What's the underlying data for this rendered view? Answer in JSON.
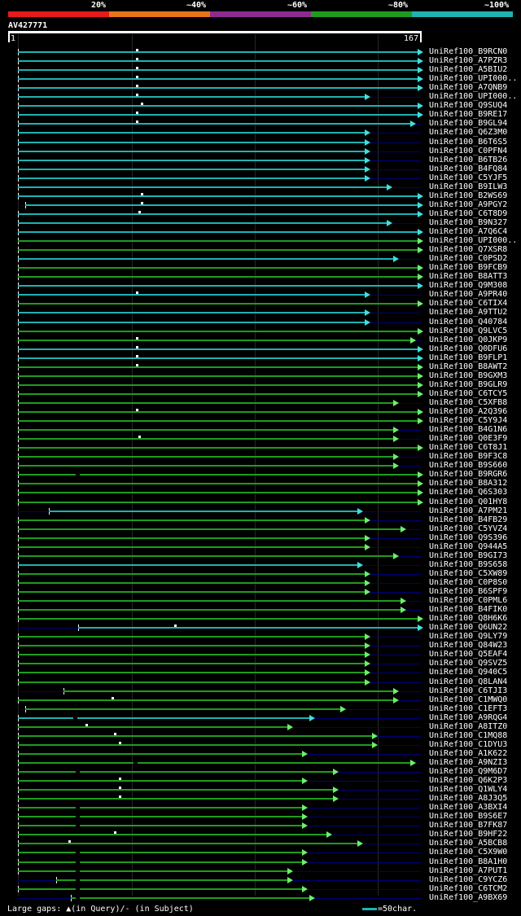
{
  "legend": {
    "labels": [
      "20%",
      "~40%",
      "~60%",
      "~80%",
      "~100%"
    ],
    "colors": [
      "#e41a1c",
      "#e6751a",
      "#8e2b8f",
      "#1e9c1e",
      "#1fb2b2"
    ]
  },
  "query": {
    "title": "AV427771",
    "start_label": "1",
    "end_label": "167",
    "length": 167
  },
  "footer": {
    "gaps_text": "Large gaps: ▲(in Query)/- (in Subject)",
    "scale_text": "=50char.",
    "scale_color": "#1fb2b2"
  },
  "chart_data": {
    "type": "alignment_overview",
    "query_id": "AV427771",
    "query_range": [
      1,
      167
    ],
    "color_legend": [
      "20%",
      "~40%",
      "~60%",
      "~80%",
      "~100%"
    ],
    "hits": [
      {
        "label": "UniRef100_B9RCN0",
        "start": 1,
        "end": 167,
        "color": "cyan",
        "qgap": 50
      },
      {
        "label": "UniRef100_A7PZR3",
        "start": 1,
        "end": 167,
        "color": "cyan",
        "qgap": 50
      },
      {
        "label": "UniRef100_A5BIU2",
        "start": 1,
        "end": 167,
        "color": "cyan",
        "qgap": 50
      },
      {
        "label": "UniRef100_UPI000..",
        "start": 1,
        "end": 167,
        "color": "cyan",
        "qgap": 50
      },
      {
        "label": "UniRef100_A7QNB9",
        "start": 1,
        "end": 167,
        "color": "cyan",
        "qgap": 50
      },
      {
        "label": "UniRef100_UPI000..",
        "start": 1,
        "end": 145,
        "color": "cyan",
        "qgap": 50
      },
      {
        "label": "UniRef100_Q9SUQ4",
        "start": 1,
        "end": 167,
        "color": "cyan",
        "qgap": 52
      },
      {
        "label": "UniRef100_B9RE17",
        "start": 1,
        "end": 167,
        "color": "cyan",
        "qgap": 50
      },
      {
        "label": "UniRef100_B9GL94",
        "start": 1,
        "end": 164,
        "color": "cyan",
        "qgap": 50
      },
      {
        "label": "UniRef100_Q6Z3M0",
        "start": 1,
        "end": 145,
        "color": "cyan"
      },
      {
        "label": "UniRef100_B6T6S5",
        "start": 1,
        "end": 145,
        "color": "cyan"
      },
      {
        "label": "UniRef100_C0PFN4",
        "start": 1,
        "end": 145,
        "color": "cyan"
      },
      {
        "label": "UniRef100_B6TB26",
        "start": 1,
        "end": 145,
        "color": "cyan"
      },
      {
        "label": "UniRef100_B4FQ84",
        "start": 1,
        "end": 145,
        "color": "cyan"
      },
      {
        "label": "UniRef100_C5YJF5",
        "start": 1,
        "end": 145,
        "color": "cyan"
      },
      {
        "label": "UniRef100_B9ILW3",
        "start": 1,
        "end": 154,
        "color": "cyan"
      },
      {
        "label": "UniRef100_B2WS69",
        "start": 1,
        "end": 167,
        "color": "cyan",
        "qgap": 52
      },
      {
        "label": "UniRef100_A9PGY2",
        "start": 4,
        "end": 167,
        "color": "cyan",
        "qgap": 52
      },
      {
        "label": "UniRef100_C6T8D9",
        "start": 1,
        "end": 167,
        "color": "cyan",
        "qgap": 51
      },
      {
        "label": "UniRef100_B9N327",
        "start": 1,
        "end": 154,
        "color": "cyan"
      },
      {
        "label": "UniRef100_A7Q6C4",
        "start": 1,
        "end": 167,
        "color": "cyan"
      },
      {
        "label": "UniRef100_UPI000..",
        "start": 1,
        "end": 167,
        "color": "green"
      },
      {
        "label": "UniRef100_Q7XSR8",
        "start": 1,
        "end": 167,
        "color": "green"
      },
      {
        "label": "UniRef100_C0PSD2",
        "start": 1,
        "end": 157,
        "color": "cyan"
      },
      {
        "label": "UniRef100_B9FCB9",
        "start": 1,
        "end": 167,
        "color": "green"
      },
      {
        "label": "UniRef100_B8ATT3",
        "start": 1,
        "end": 167,
        "color": "green"
      },
      {
        "label": "UniRef100_Q9M308",
        "start": 1,
        "end": 167,
        "color": "cyan"
      },
      {
        "label": "UniRef100_A9PR40",
        "start": 1,
        "end": 145,
        "color": "cyan",
        "qgap": 50
      },
      {
        "label": "UniRef100_C6TIX4",
        "start": 1,
        "end": 167,
        "color": "green"
      },
      {
        "label": "UniRef100_A9TTU2",
        "start": 1,
        "end": 145,
        "color": "cyan"
      },
      {
        "label": "UniRef100_Q40784",
        "start": 1,
        "end": 145,
        "color": "cyan"
      },
      {
        "label": "UniRef100_Q9LVC5",
        "start": 1,
        "end": 167,
        "color": "green"
      },
      {
        "label": "UniRef100_Q0JKP9",
        "start": 1,
        "end": 164,
        "color": "green",
        "qgap": 50
      },
      {
        "label": "UniRef100_Q0DFU6",
        "start": 1,
        "end": 167,
        "color": "cyan",
        "qgap": 50
      },
      {
        "label": "UniRef100_B9FLP1",
        "start": 1,
        "end": 167,
        "color": "cyan",
        "qgap": 50
      },
      {
        "label": "UniRef100_B8AWT2",
        "start": 1,
        "end": 167,
        "color": "green",
        "qgap": 50
      },
      {
        "label": "UniRef100_B9GXM3",
        "start": 1,
        "end": 167,
        "color": "green"
      },
      {
        "label": "UniRef100_B9GLR9",
        "start": 1,
        "end": 167,
        "color": "green"
      },
      {
        "label": "UniRef100_C6TCY5",
        "start": 1,
        "end": 167,
        "color": "green"
      },
      {
        "label": "UniRef100_C5XFB8",
        "start": 1,
        "end": 157,
        "color": "green"
      },
      {
        "label": "UniRef100_A2Q396",
        "start": 1,
        "end": 167,
        "color": "green",
        "qgap": 50
      },
      {
        "label": "UniRef100_C5Y9J4",
        "start": 1,
        "end": 167,
        "color": "green"
      },
      {
        "label": "UniRef100_B4G1N6",
        "start": 1,
        "end": 157,
        "color": "green"
      },
      {
        "label": "UniRef100_Q0E3F9",
        "start": 1,
        "end": 157,
        "color": "green",
        "qgap": 51
      },
      {
        "label": "UniRef100_C6T8J1",
        "start": 1,
        "end": 167,
        "color": "green"
      },
      {
        "label": "UniRef100_B9F3C8",
        "start": 1,
        "end": 157,
        "color": "green"
      },
      {
        "label": "UniRef100_B9S660",
        "start": 1,
        "end": 157,
        "color": "green"
      },
      {
        "label": "UniRef100_B9RGR6",
        "start": 1,
        "end": 167,
        "color": "green",
        "sgap": 25
      },
      {
        "label": "UniRef100_B8A312",
        "start": 1,
        "end": 167,
        "color": "green"
      },
      {
        "label": "UniRef100_Q6S303",
        "start": 1,
        "end": 167,
        "color": "green"
      },
      {
        "label": "UniRef100_Q01HY8",
        "start": 1,
        "end": 167,
        "color": "green"
      },
      {
        "label": "UniRef100_A7PM21",
        "start": 14,
        "end": 142,
        "color": "cyan"
      },
      {
        "label": "UniRef100_B4FB29",
        "start": 1,
        "end": 145,
        "color": "green"
      },
      {
        "label": "UniRef100_C5YVZ4",
        "start": 1,
        "end": 160,
        "color": "green"
      },
      {
        "label": "UniRef100_Q9S396",
        "start": 1,
        "end": 145,
        "color": "green"
      },
      {
        "label": "UniRef100_Q944A5",
        "start": 1,
        "end": 145,
        "color": "green"
      },
      {
        "label": "UniRef100_B9GI73",
        "start": 1,
        "end": 157,
        "color": "green"
      },
      {
        "label": "UniRef100_B9S658",
        "start": 1,
        "end": 142,
        "color": "cyan"
      },
      {
        "label": "UniRef100_C5XW89",
        "start": 1,
        "end": 145,
        "color": "green"
      },
      {
        "label": "UniRef100_C0P8S0",
        "start": 1,
        "end": 145,
        "color": "green"
      },
      {
        "label": "UniRef100_B6SPF9",
        "start": 1,
        "end": 145,
        "color": "green"
      },
      {
        "label": "UniRef100_C0PML6",
        "start": 1,
        "end": 160,
        "color": "green"
      },
      {
        "label": "UniRef100_B4FIK0",
        "start": 1,
        "end": 160,
        "color": "green"
      },
      {
        "label": "UniRef100_Q8H6K6",
        "start": 1,
        "end": 167,
        "color": "green"
      },
      {
        "label": "UniRef100_Q6UN22",
        "start": 26,
        "end": 167,
        "color": "cyan",
        "qgap": 66
      },
      {
        "label": "UniRef100_Q9LY79",
        "start": 1,
        "end": 145,
        "color": "green"
      },
      {
        "label": "UniRef100_Q84W23",
        "start": 1,
        "end": 145,
        "color": "green"
      },
      {
        "label": "UniRef100_Q5EAF4",
        "start": 1,
        "end": 145,
        "color": "green"
      },
      {
        "label": "UniRef100_Q9SVZ5",
        "start": 1,
        "end": 145,
        "color": "green"
      },
      {
        "label": "UniRef100_Q940C5",
        "start": 1,
        "end": 145,
        "color": "green"
      },
      {
        "label": "UniRef100_Q8LAN4",
        "start": 1,
        "end": 145,
        "color": "green"
      },
      {
        "label": "UniRef100_C6TJI3",
        "start": 20,
        "end": 157,
        "color": "green"
      },
      {
        "label": "UniRef100_C1MWQ0",
        "start": 1,
        "end": 157,
        "color": "green",
        "qgap": 40
      },
      {
        "label": "UniRef100_C1EFT3",
        "start": 4,
        "end": 135,
        "color": "green"
      },
      {
        "label": "UniRef100_A9RQG4",
        "start": 1,
        "end": 122,
        "color": "cyan",
        "sgap": 24
      },
      {
        "label": "UniRef100_A8ITZ0",
        "start": 1,
        "end": 113,
        "color": "green",
        "qgap": 29
      },
      {
        "label": "UniRef100_C1MQ88",
        "start": 1,
        "end": 148,
        "color": "green",
        "qgap": 41
      },
      {
        "label": "UniRef100_C1DYU3",
        "start": 1,
        "end": 148,
        "color": "green",
        "qgap": 43
      },
      {
        "label": "UniRef100_A1K622",
        "start": 1,
        "end": 119,
        "color": "green"
      },
      {
        "label": "UniRef100_A9NZI3",
        "start": 1,
        "end": 164,
        "color": "green",
        "sgap": 49
      },
      {
        "label": "UniRef100_Q9M6D7",
        "start": 1,
        "end": 132,
        "color": "green",
        "sgap": 25
      },
      {
        "label": "UniRef100_Q6K2P3",
        "start": 1,
        "end": 119,
        "color": "green",
        "qgap": 43
      },
      {
        "label": "UniRef100_Q1WLY4",
        "start": 1,
        "end": 132,
        "color": "green",
        "qgap": 43
      },
      {
        "label": "UniRef100_A8J3Q5",
        "start": 1,
        "end": 132,
        "color": "green",
        "qgap": 43
      },
      {
        "label": "UniRef100_A3BXI4",
        "start": 1,
        "end": 119,
        "color": "green",
        "sgap": 25
      },
      {
        "label": "UniRef100_B9S6E7",
        "start": 1,
        "end": 119,
        "color": "green",
        "sgap": 25
      },
      {
        "label": "UniRef100_B7FK87",
        "start": 1,
        "end": 119,
        "color": "green",
        "sgap": 25
      },
      {
        "label": "UniRef100_B9HF22",
        "start": 1,
        "end": 129,
        "color": "green",
        "qgap": 41
      },
      {
        "label": "UniRef100_A5BCB8",
        "start": 1,
        "end": 142,
        "color": "green",
        "qgap": 22
      },
      {
        "label": "UniRef100_C5X9W0",
        "start": 1,
        "end": 119,
        "color": "green",
        "sgap": 25
      },
      {
        "label": "UniRef100_B8A1H0",
        "start": 1,
        "end": 119,
        "color": "green",
        "sgap": 25
      },
      {
        "label": "UniRef100_A7PUT1",
        "start": 1,
        "end": 113,
        "color": "green",
        "sgap": 25
      },
      {
        "label": "UniRef100_C9YCZ6",
        "start": 17,
        "end": 113,
        "color": "green",
        "sgap": 25
      },
      {
        "label": "UniRef100_C6TCM2",
        "start": 1,
        "end": 119,
        "color": "green",
        "sgap": 25
      },
      {
        "label": "UniRef100_A9BX69",
        "start": 23,
        "end": 122,
        "color": "green",
        "sgap": 25
      }
    ]
  }
}
